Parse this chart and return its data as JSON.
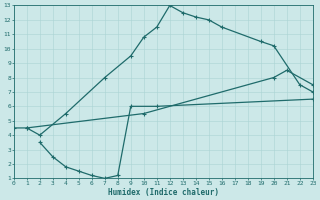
{
  "xlabel": "Humidex (Indice chaleur)",
  "xlim": [
    0,
    23
  ],
  "ylim": [
    1,
    13
  ],
  "xticks": [
    0,
    1,
    2,
    3,
    4,
    5,
    6,
    7,
    8,
    9,
    10,
    11,
    12,
    13,
    14,
    15,
    16,
    17,
    18,
    19,
    20,
    21,
    22,
    23
  ],
  "yticks": [
    1,
    2,
    3,
    4,
    5,
    6,
    7,
    8,
    9,
    10,
    11,
    12,
    13
  ],
  "bg_color": "#cce8e8",
  "line_color": "#1f6b6b",
  "grid_color": "#aad4d4",
  "curve1_x": [
    1,
    2,
    4,
    7,
    9,
    10,
    11,
    12,
    13,
    14,
    15,
    16,
    19,
    20,
    22,
    23
  ],
  "curve1_y": [
    4.5,
    4.0,
    5.5,
    8.0,
    9.5,
    10.8,
    11.5,
    13.0,
    12.5,
    12.2,
    12.0,
    11.5,
    10.5,
    10.2,
    7.5,
    7.0
  ],
  "curve2_x": [
    0,
    1,
    10,
    20,
    21,
    23
  ],
  "curve2_y": [
    4.5,
    4.5,
    5.5,
    8.0,
    8.5,
    7.5
  ],
  "curve3_x": [
    2,
    3,
    4,
    5,
    6,
    7,
    8,
    9,
    11,
    23
  ],
  "curve3_y": [
    3.5,
    2.5,
    1.8,
    1.5,
    1.2,
    1.0,
    1.2,
    6.0,
    6.0,
    6.5
  ]
}
